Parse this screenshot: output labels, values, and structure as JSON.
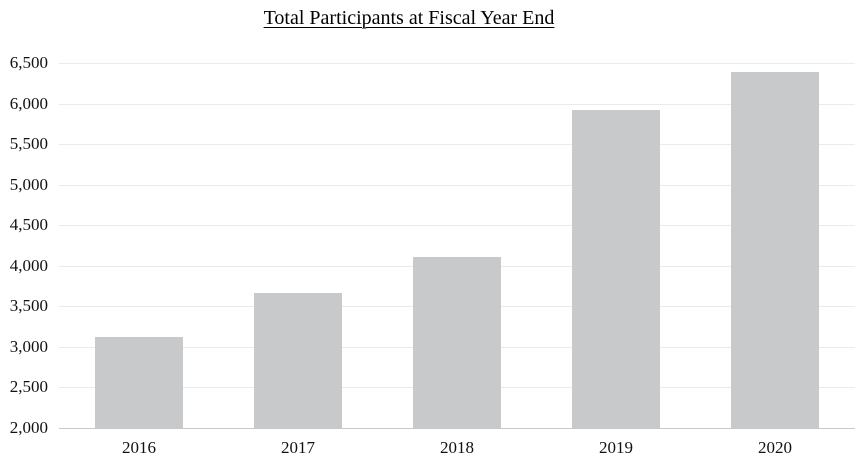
{
  "chart_data": {
    "type": "bar",
    "title": "Total Participants at Fiscal Year End",
    "categories": [
      "2016",
      "2017",
      "2018",
      "2019",
      "2020"
    ],
    "values": [
      3120,
      3660,
      4105,
      5925,
      6390
    ],
    "xlabel": "",
    "ylabel": "",
    "ylim": [
      2000,
      6500
    ],
    "ytick_step": 500,
    "ytick_labels": [
      "2,000",
      "2,500",
      "3,000",
      "3,500",
      "4,000",
      "4,500",
      "5,000",
      "5,500",
      "6,000",
      "6,500"
    ],
    "grid": true,
    "legend": false,
    "colors": {
      "bar_fill": "#c8c9ca",
      "gridline": "#ebebeb",
      "axis_line": "#c9c9c9",
      "text": "#111111",
      "background": "#ffffff"
    }
  }
}
